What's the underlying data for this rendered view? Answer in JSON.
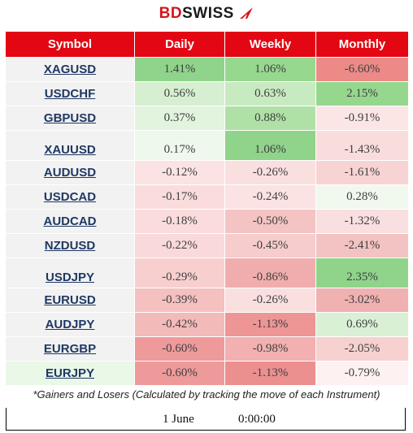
{
  "logo": {
    "part1": "BD",
    "part2": "SWISS",
    "icon": "brand-arrow-icon",
    "color_brand": "#d7141a"
  },
  "table": {
    "headers": [
      "Symbol",
      "Daily",
      "Weekly",
      "Monthly"
    ],
    "header_color": "#e30613",
    "rows": [
      {
        "symbol": "XAGUSD",
        "values": [
          "1.41%",
          "1.06%",
          "-6.60%"
        ],
        "colors": [
          "#8fd48a",
          "#97d88f",
          "#ec8a87"
        ],
        "sym_color": "#f2f2f2"
      },
      {
        "symbol": "USDCHF",
        "values": [
          "0.56%",
          "0.63%",
          "2.15%"
        ],
        "colors": [
          "#d6efd0",
          "#c8eac1",
          "#96d78e"
        ],
        "sym_color": "#f2f2f2"
      },
      {
        "symbol": "GBPUSD",
        "values": [
          "0.37%",
          "0.88%",
          "-0.91%"
        ],
        "colors": [
          "#e2f3de",
          "#afe1a6",
          "#fbe5e5"
        ],
        "sym_color": "#f2f2f2"
      },
      {
        "symbol": "XAUUSD",
        "values": [
          "0.17%",
          "1.06%",
          "-1.43%"
        ],
        "colors": [
          "#eef8ec",
          "#8fd48a",
          "#f9dddd"
        ],
        "sym_color": "#f2f2f2"
      },
      {
        "symbol": "AUDUSD",
        "values": [
          "-0.12%",
          "-0.26%",
          "-1.61%"
        ],
        "colors": [
          "#fbe3e3",
          "#fadfdf",
          "#f7d3d3"
        ],
        "sym_color": "#f2f2f2"
      },
      {
        "symbol": "USDCAD",
        "values": [
          "-0.17%",
          "-0.24%",
          "0.28%"
        ],
        "colors": [
          "#fadcdc",
          "#fbe3e3",
          "#f1f8ee"
        ],
        "sym_color": "#f2f2f2"
      },
      {
        "symbol": "AUDCAD",
        "values": [
          "-0.18%",
          "-0.50%",
          "-1.32%"
        ],
        "colors": [
          "#fadcdc",
          "#f4c3c3",
          "#f9dfdf"
        ],
        "sym_color": "#f2f2f2"
      },
      {
        "symbol": "NZDUSD",
        "values": [
          "-0.22%",
          "-0.45%",
          "-2.41%"
        ],
        "colors": [
          "#f9d9d9",
          "#f6cccc",
          "#f3c2c2"
        ],
        "sym_color": "#f2f2f2"
      },
      {
        "symbol": "USDJPY",
        "values": [
          "-0.29%",
          "-0.86%",
          "2.35%"
        ],
        "colors": [
          "#f7cfcf",
          "#f0adad",
          "#8fd48a"
        ],
        "sym_color": "#f2f2f2"
      },
      {
        "symbol": "EURUSD",
        "values": [
          "-0.39%",
          "-0.26%",
          "-3.02%"
        ],
        "colors": [
          "#f4c0c0",
          "#fadfdf",
          "#f0b1b1"
        ],
        "sym_color": "#f2f2f2"
      },
      {
        "symbol": "AUDJPY",
        "values": [
          "-0.42%",
          "-1.13%",
          "0.69%"
        ],
        "colors": [
          "#f3baba",
          "#ee9595",
          "#daf0d5"
        ],
        "sym_color": "#f2f2f2"
      },
      {
        "symbol": "EURGBP",
        "values": [
          "-0.60%",
          "-0.98%",
          "-2.05%"
        ],
        "colors": [
          "#ee9a9a",
          "#f2b0b0",
          "#f7d0d0"
        ],
        "sym_color": "#f2f2f2"
      },
      {
        "symbol": "EURJPY",
        "values": [
          "-0.60%",
          "-1.13%",
          "-0.79%"
        ],
        "colors": [
          "#ee9a9a",
          "#ec8f8f",
          "#fdf1f1"
        ],
        "sym_color": "#e9f8e7"
      }
    ],
    "row_heights": [
      30,
      30,
      30,
      37,
      30,
      30,
      30,
      30,
      37,
      30,
      30,
      30,
      30
    ]
  },
  "note": "*Gainers and Losers (Calculated by tracking the move of each Instrument)",
  "footer": {
    "date": "1 June",
    "time": "0:00:00"
  }
}
